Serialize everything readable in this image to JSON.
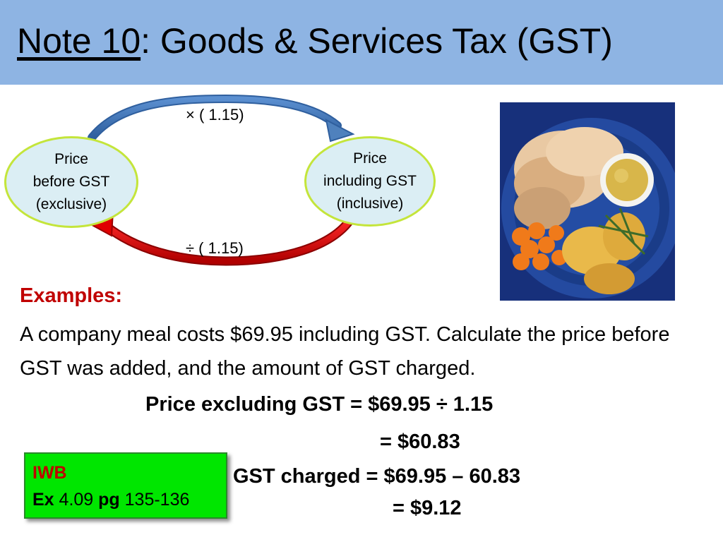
{
  "header": {
    "title_underlined": "Note 10",
    "title_rest": ": Goods & Services Tax (GST)",
    "background": "#8eb4e3"
  },
  "diagram": {
    "top_operation": "× ( 1.15)",
    "bottom_operation": "÷ ( 1.15)",
    "left_oval": [
      "Price",
      "before GST",
      "(exclusive)"
    ],
    "right_oval": [
      "Price",
      "including GST",
      "(inclusive)"
    ],
    "top_arrow_color": "#4f81bd",
    "bottom_arrow_color": "#e00000",
    "oval_fill": "#dbeef4",
    "oval_border": "#c4e53b"
  },
  "photo": {
    "icon": "food-plate-photo"
  },
  "examples": {
    "label": "Examples:",
    "problem": "A company meal costs $69.95 including GST.  Calculate the price before GST was added, and the amount of GST charged.",
    "solution": [
      "Price excluding GST = $69.95 ÷ 1.15",
      "= $60.83",
      "GST charged = $69.95 – 60.83",
      "= $9.12"
    ]
  },
  "iwb": {
    "title": "IWB",
    "ex_label": "Ex",
    "ex_value": " 4.09 ",
    "pg_label": "pg",
    "pg_value": " 135-136",
    "fill": "#00e600"
  }
}
